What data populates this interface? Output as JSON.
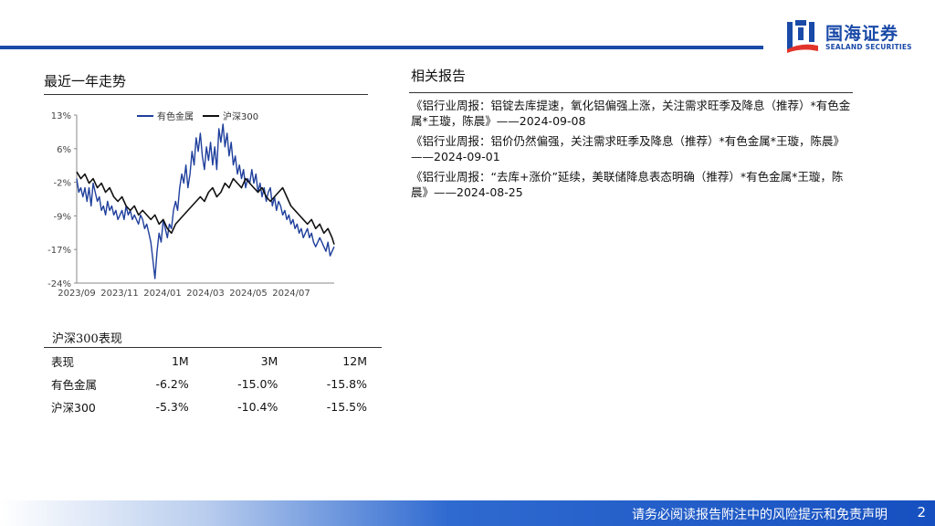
{
  "brand": {
    "name_cn": "国海证券",
    "name_en": "SEALAND SECURITIES",
    "color": "#1a4aa8"
  },
  "left_section": {
    "title": "最近一年走势"
  },
  "chart_data": {
    "type": "line",
    "legend_position": "top",
    "y_ticks": [
      "13%",
      "6%",
      "-2%",
      "-9%",
      "-17%",
      "-24%"
    ],
    "x_ticks": [
      "2023/09",
      "2023/11",
      "2024/01",
      "2024/03",
      "2024/05",
      "2024/07"
    ],
    "ylim": [
      -24,
      13
    ],
    "series": [
      {
        "name": "有色金属",
        "color": "#1f3f9c",
        "x": [
          0,
          2,
          4,
          6,
          8,
          10,
          12,
          14,
          16,
          18,
          20,
          22,
          24,
          26,
          28,
          30,
          32,
          34,
          36,
          38,
          40,
          42,
          44,
          46,
          48,
          50,
          52,
          54,
          56,
          58,
          60,
          62,
          64,
          66,
          68,
          70,
          72,
          74,
          76,
          78,
          80,
          82,
          84,
          86,
          88,
          90,
          92,
          94,
          96,
          98,
          100,
          102,
          104,
          106,
          108,
          110,
          112,
          114,
          116,
          118,
          120,
          122,
          124,
          126,
          128,
          130,
          132,
          134,
          136,
          138,
          140,
          142,
          144,
          146,
          148,
          150,
          152,
          154,
          156,
          158,
          160,
          162,
          164,
          166,
          168,
          170,
          172,
          174,
          176,
          178,
          180,
          182,
          184,
          186,
          188,
          190,
          192,
          194,
          196,
          198,
          200,
          202,
          204,
          206,
          208,
          210,
          212,
          214,
          216,
          218,
          220,
          222,
          224,
          226,
          228,
          230,
          232,
          234,
          236,
          238,
          240,
          242,
          244,
          246,
          248,
          250
        ],
        "values": [
          -1,
          -4,
          -3,
          -5,
          -3,
          -6,
          -3,
          -7,
          -2,
          -4,
          -6,
          -5,
          -8,
          -7,
          -9,
          -6,
          -8,
          -7,
          -9,
          -8,
          -10,
          -9,
          -8,
          -10,
          -7,
          -9,
          -8,
          -10,
          -9,
          -10,
          -11,
          -9,
          -10,
          -12,
          -11,
          -13,
          -15,
          -19,
          -23,
          -17,
          -13,
          -15,
          -10,
          -12,
          -14,
          -11,
          -12,
          -8,
          -6,
          -8,
          -3,
          0,
          -2,
          2,
          -3,
          0,
          5,
          2,
          8,
          5,
          9,
          4,
          1,
          6,
          3,
          7,
          2,
          6,
          1,
          10,
          7,
          11,
          6,
          9,
          4,
          7,
          2,
          4,
          0,
          2,
          -1,
          1,
          -3,
          -1,
          -2,
          1,
          -2,
          0,
          -4,
          -2,
          -5,
          -3,
          -6,
          -4,
          -3,
          -7,
          -5,
          -8,
          -6,
          -7,
          -9,
          -8,
          -10,
          -9,
          -11,
          -10,
          -12,
          -11,
          -13,
          -12,
          -14,
          -13,
          -12,
          -14,
          -13,
          -15,
          -16,
          -15,
          -14,
          -15,
          -16,
          -17,
          -15,
          -18,
          -17,
          -16
        ]
      },
      {
        "name": "沪深300",
        "color": "#111111",
        "x": [
          0,
          4,
          8,
          12,
          16,
          20,
          24,
          28,
          32,
          36,
          40,
          44,
          48,
          52,
          56,
          60,
          64,
          68,
          72,
          76,
          80,
          84,
          88,
          92,
          96,
          100,
          104,
          108,
          112,
          116,
          120,
          124,
          128,
          132,
          136,
          140,
          144,
          148,
          152,
          156,
          160,
          164,
          168,
          172,
          176,
          180,
          184,
          188,
          192,
          196,
          200,
          204,
          208,
          212,
          216,
          220,
          224,
          228,
          232,
          236,
          240,
          244,
          248,
          250
        ],
        "values": [
          0.5,
          -1,
          0,
          -2,
          -1,
          -3,
          -2,
          -4,
          -3,
          -5,
          -6,
          -5,
          -7,
          -8,
          -7,
          -9,
          -8,
          -9,
          -10,
          -9,
          -11,
          -10,
          -12,
          -13,
          -11,
          -10,
          -9,
          -8,
          -7,
          -6,
          -5,
          -6,
          -4,
          -3,
          -5,
          -4,
          -2,
          -3,
          -1,
          -2,
          -3,
          -1,
          -2,
          -3,
          -4,
          -3,
          -5,
          -6,
          -5,
          -4,
          -3,
          -5,
          -7,
          -8,
          -9,
          -10,
          -11,
          -10,
          -12,
          -11,
          -13,
          -12,
          -14,
          -15.5
        ]
      }
    ]
  },
  "performance": {
    "title": "沪深300表现",
    "header": [
      "表现",
      "1M",
      "3M",
      "12M"
    ],
    "rows": [
      [
        "有色金属",
        "-6.2%",
        "-15.0%",
        "-15.8%"
      ],
      [
        "沪深300",
        "-5.3%",
        "-10.4%",
        "-15.5%"
      ]
    ]
  },
  "right_section": {
    "title": "相关报告",
    "reports": [
      "《铝行业周报：铝锭去库提速，氧化铝偏强上涨，关注需求旺季及降息（推荐）*有色金属*王璇，陈晨》——2024-09-08",
      "《铝行业周报：铝价仍然偏强，关注需求旺季及降息（推荐）*有色金属*王璇，陈晨》——2024-09-01",
      "《铝行业周报：“去库+涨价”延续，美联储降息表态明确（推荐）*有色金属*王璇，陈晨》——2024-08-25"
    ]
  },
  "footer": {
    "disclaimer": "请务必阅读报告附注中的风险提示和免责声明",
    "page_number": "2"
  }
}
